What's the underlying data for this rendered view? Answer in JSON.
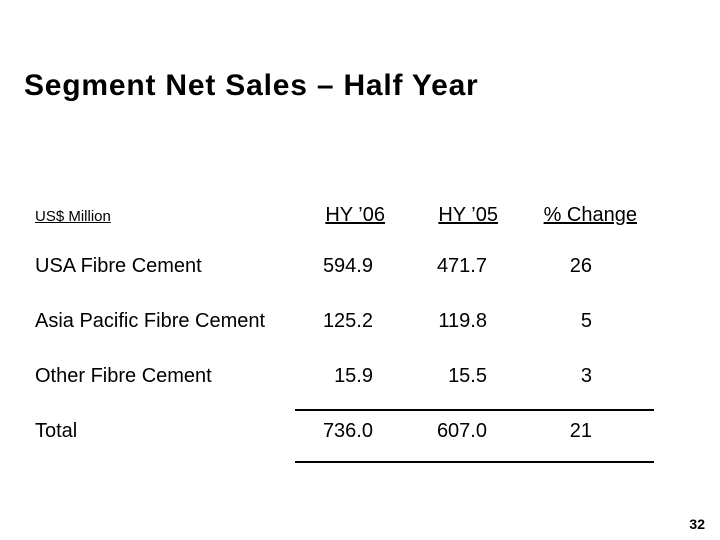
{
  "slide": {
    "title": "Segment Net Sales – Half Year",
    "page_number": "32",
    "background_color": "#ffffff",
    "text_color": "#000000"
  },
  "table": {
    "unit_label": "US$ Million",
    "column_headers": [
      "HY ’06",
      "HY ’05",
      "% Change"
    ],
    "rows": [
      {
        "label": "USA Fibre Cement",
        "hy06": "594.9",
        "hy05": "471.7",
        "pct_change": "26"
      },
      {
        "label": "Asia Pacific Fibre Cement",
        "hy06": "125.2",
        "hy05": "119.8",
        "pct_change": "5"
      },
      {
        "label": "Other Fibre Cement",
        "hy06": "15.9",
        "hy05": "15.5",
        "pct_change": "3"
      }
    ],
    "total": {
      "label": "Total",
      "hy06": "736.0",
      "hy05": "607.0",
      "pct_change": "21"
    }
  }
}
